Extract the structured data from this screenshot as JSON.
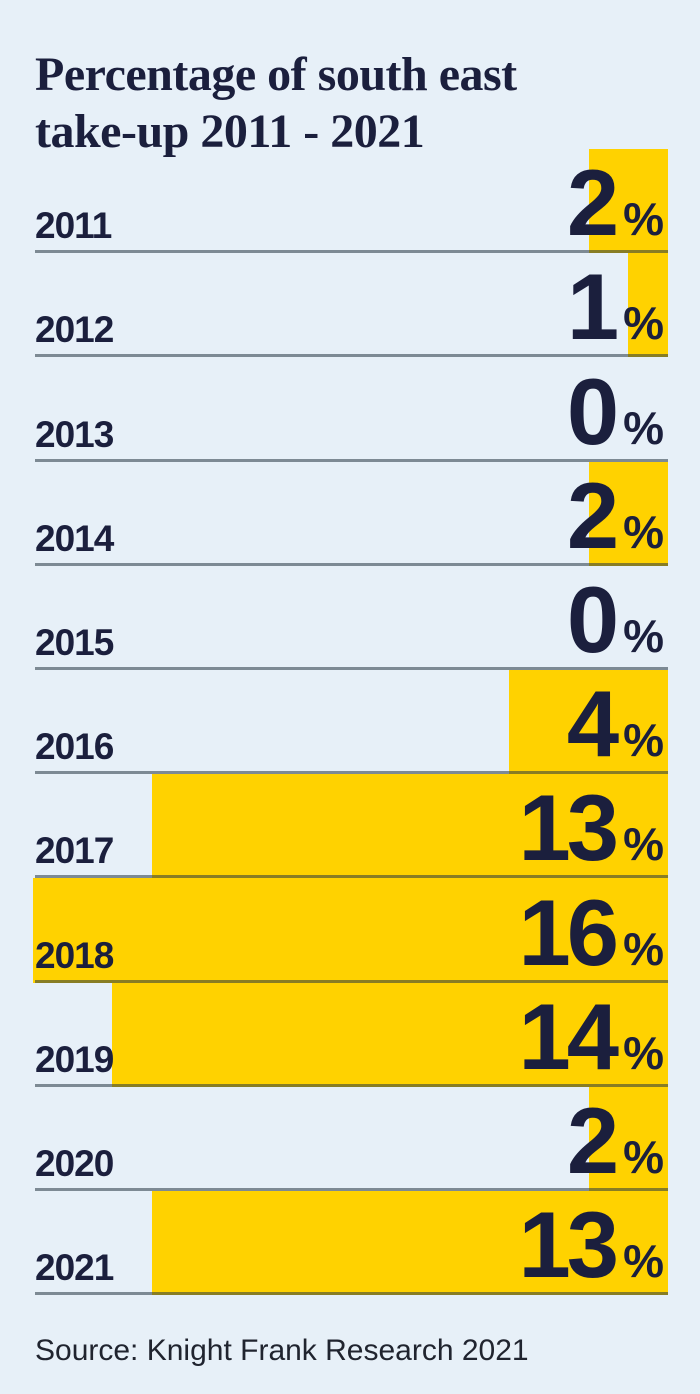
{
  "header": {
    "title_line1": "Percentage of south east",
    "title_line2": "take-up 2011 - 2021"
  },
  "footer": {
    "source": "Source: Knight Frank Research 2021"
  },
  "colors": {
    "background": "#e7f0f8",
    "bar": "#ffd200",
    "text": "#1b1f3d",
    "divider": "rgba(38,55,66,0.55)"
  },
  "chart_data": {
    "type": "bar",
    "orientation": "horizontal-right-anchored",
    "title": "Percentage of south east take-up 2011 - 2021",
    "categories": [
      "2011",
      "2012",
      "2013",
      "2014",
      "2015",
      "2016",
      "2017",
      "2018",
      "2019",
      "2020",
      "2021"
    ],
    "values": [
      2,
      1,
      0,
      2,
      0,
      4,
      13,
      16,
      14,
      2,
      13
    ],
    "unit": "%",
    "value_range": [
      0,
      16
    ],
    "grid": "row-dividers",
    "legend": "none",
    "source": "Source: Knight Frank Research 2021"
  }
}
